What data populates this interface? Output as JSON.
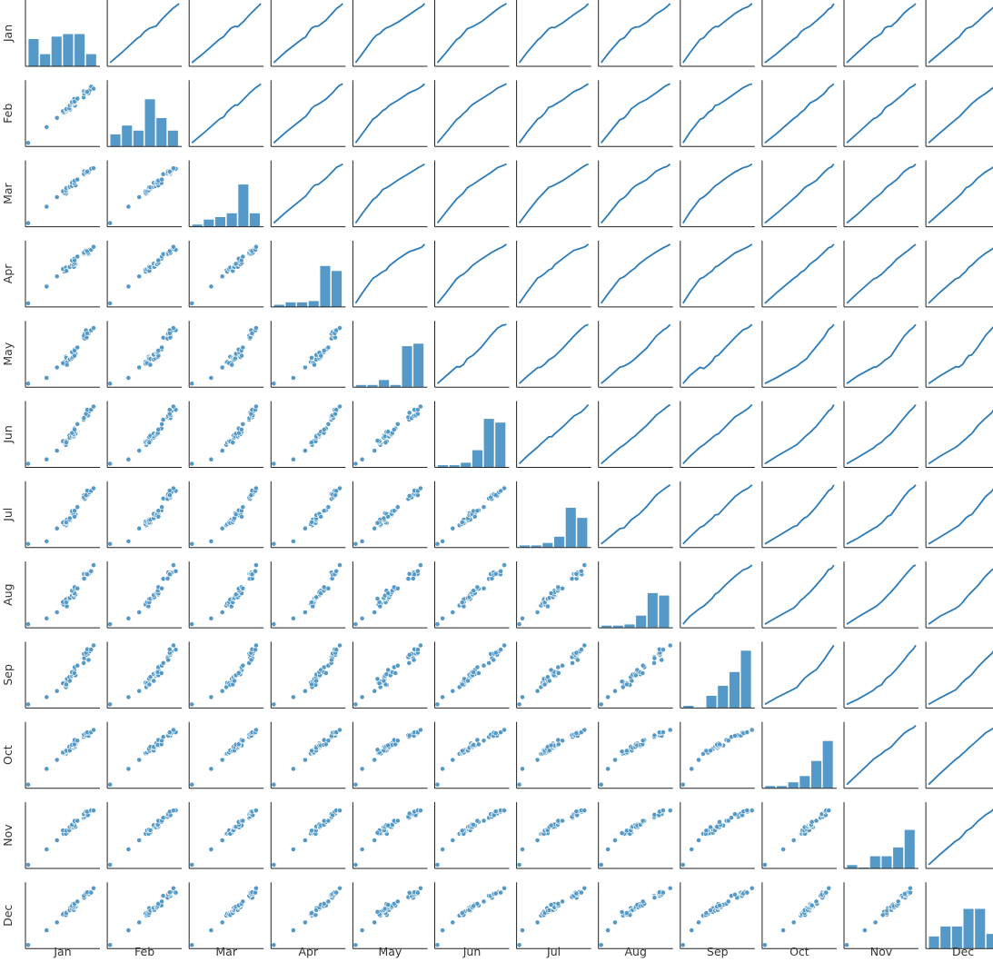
{
  "chart_data": {
    "type": "pairplot",
    "title": "",
    "variables": [
      "Jan",
      "Feb",
      "Mar",
      "Apr",
      "May",
      "Jun",
      "Jul",
      "Aug",
      "Sep",
      "Oct",
      "Nov",
      "Dec"
    ],
    "layout": "lower triangle: scatter; diagonal: histogram; upper triangle: line of column variable vs row variable",
    "color": "#2b7bba",
    "bar_color": "#5499c7",
    "histograms": {
      "Jan": [
        2.2,
        1.0,
        2.4,
        2.6,
        2.6,
        1.0
      ],
      "Feb": [
        1.0,
        1.7,
        1.3,
        3.8,
        2.3,
        1.3
      ],
      "Mar": [
        0.2,
        0.6,
        0.8,
        1.1,
        3.4,
        1.1
      ],
      "Apr": [
        0.2,
        0.4,
        0.4,
        0.5,
        3.3,
        2.9
      ],
      "May": [
        0.2,
        0.2,
        0.6,
        0.2,
        3.3,
        3.5
      ],
      "Jun": [
        0.2,
        0.2,
        0.4,
        1.4,
        3.9,
        3.6
      ],
      "Jul": [
        0.2,
        0.2,
        0.4,
        0.9,
        3.2,
        2.4
      ],
      "Aug": [
        0.2,
        0.2,
        0.3,
        1.0,
        2.8,
        2.6
      ],
      "Sep": [
        0.2,
        0.0,
        1.0,
        1.8,
        2.9,
        4.6
      ],
      "Oct": [
        0.2,
        0.2,
        0.5,
        1.0,
        2.2,
        3.8
      ],
      "Nov": [
        0.3,
        0.1,
        1.0,
        1.0,
        1.7,
        3.1
      ],
      "Dec": [
        1.0,
        1.8,
        1.8,
        3.2,
        3.2,
        1.2
      ]
    }
  }
}
